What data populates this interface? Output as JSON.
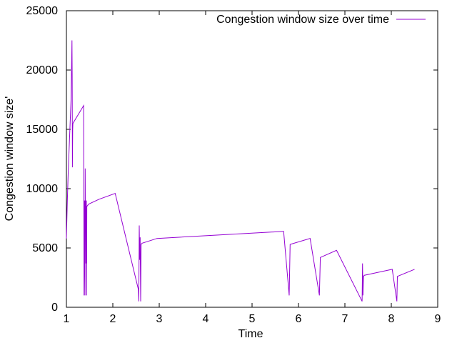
{
  "chart_data": {
    "type": "line",
    "title": "",
    "xlabel": "Time",
    "ylabel": "Congestion window size'",
    "xlim": [
      1,
      9
    ],
    "ylim": [
      0,
      25000
    ],
    "x_ticks": [
      1,
      2,
      3,
      4,
      5,
      6,
      7,
      8,
      9
    ],
    "y_ticks": [
      0,
      5000,
      10000,
      15000,
      20000,
      25000
    ],
    "grid": false,
    "legend_position": "top-right",
    "series": [
      {
        "name": "Congestion window size over time",
        "color": "#9400d3",
        "x": [
          1.0,
          1.02,
          1.04,
          1.06,
          1.08,
          1.1,
          1.11,
          1.12,
          1.125,
          1.13,
          1.135,
          1.14,
          1.37,
          1.38,
          1.39,
          1.4,
          1.405,
          1.41,
          1.415,
          1.42,
          1.43,
          1.435,
          1.44,
          1.45,
          1.46,
          1.47,
          1.48,
          1.7,
          2.05,
          2.55,
          2.56,
          2.57,
          2.58,
          2.59,
          2.6,
          2.61,
          2.62,
          2.63,
          2.95,
          5.68,
          5.8,
          5.82,
          6.25,
          6.45,
          6.47,
          6.82,
          7.37,
          7.38,
          7.39,
          7.4,
          7.41,
          7.42,
          8.02,
          8.12,
          8.13,
          8.5
        ],
        "y": [
          5800,
          9000,
          11500,
          13500,
          15500,
          17500,
          20000,
          22500,
          19500,
          11800,
          15000,
          15500,
          17000,
          1000,
          9000,
          1000,
          11700,
          6400,
          9000,
          3700,
          9000,
          1000,
          8500,
          8550,
          8600,
          8650,
          8700,
          9100,
          9600,
          1500,
          500,
          6900,
          4000,
          5900,
          500,
          5300,
          5350,
          5400,
          5800,
          6400,
          1000,
          5300,
          5800,
          1000,
          4200,
          4800,
          500,
          3700,
          1000,
          2600,
          2650,
          2700,
          3200,
          500,
          2600,
          3200
        ]
      }
    ]
  }
}
